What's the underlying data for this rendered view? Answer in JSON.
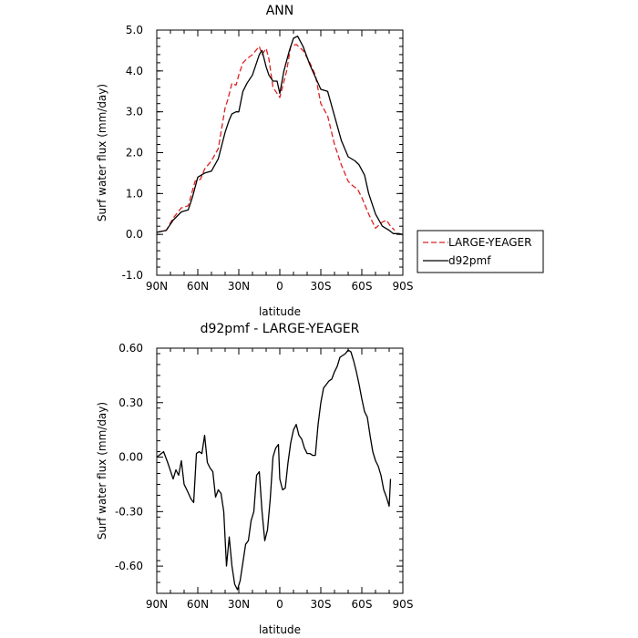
{
  "chart_data": [
    {
      "type": "line",
      "title": "ANN",
      "xlabel": "latitude",
      "ylabel": "Surf water flux (mm/day)",
      "xlim": [
        -90,
        90
      ],
      "ylim": [
        -1.0,
        5.0
      ],
      "xticks": [
        {
          "value": -90,
          "label": "90N"
        },
        {
          "value": -60,
          "label": "60N"
        },
        {
          "value": -30,
          "label": "30N"
        },
        {
          "value": 0,
          "label": "0"
        },
        {
          "value": 30,
          "label": "30S"
        },
        {
          "value": 60,
          "label": "60S"
        },
        {
          "value": 90,
          "label": "90S"
        }
      ],
      "yticks": [
        {
          "value": -1.0,
          "label": "-1.0"
        },
        {
          "value": 0.0,
          "label": "0.0"
        },
        {
          "value": 1.0,
          "label": "1.0"
        },
        {
          "value": 2.0,
          "label": "2.0"
        },
        {
          "value": 3.0,
          "label": "3.0"
        },
        {
          "value": 4.0,
          "label": "4.0"
        },
        {
          "value": 5.0,
          "label": "5.0"
        }
      ],
      "legend_position": "right",
      "series": [
        {
          "name": "LARGE-YEAGER",
          "color": "#dd2222",
          "dash": "dashed",
          "x": [
            -90,
            -83,
            -78,
            -72,
            -67,
            -62,
            -58,
            -55,
            -50,
            -45,
            -40,
            -38,
            -35,
            -32,
            -30,
            -27,
            -24,
            -20,
            -15,
            -13,
            -10,
            -8,
            -5,
            0,
            5,
            8,
            12,
            17,
            22,
            26,
            30,
            35,
            40,
            45,
            50,
            53,
            57,
            60,
            65,
            70,
            75,
            78,
            81,
            84
          ],
          "y": [
            0.05,
            0.1,
            0.4,
            0.65,
            0.7,
            1.3,
            1.35,
            1.6,
            1.8,
            2.1,
            3.1,
            3.3,
            3.7,
            3.65,
            3.9,
            4.2,
            4.3,
            4.4,
            4.6,
            4.4,
            4.55,
            4.3,
            3.6,
            3.35,
            4.0,
            4.6,
            4.65,
            4.5,
            4.2,
            3.9,
            3.2,
            2.9,
            2.2,
            1.7,
            1.3,
            1.2,
            1.1,
            0.9,
            0.5,
            0.15,
            0.3,
            0.35,
            0.2,
            0.1
          ]
        },
        {
          "name": "d92pmf",
          "color": "#000000",
          "dash": "solid",
          "x": [
            -90,
            -83,
            -78,
            -72,
            -67,
            -64,
            -60,
            -55,
            -50,
            -45,
            -40,
            -37,
            -35,
            -32,
            -30,
            -27,
            -24,
            -20,
            -15,
            -13,
            -10,
            -8,
            -5,
            -2,
            0,
            3,
            7,
            10,
            13,
            17,
            22,
            26,
            30,
            35,
            40,
            45,
            50,
            55,
            58,
            62,
            65,
            70,
            75,
            80,
            83,
            87,
            90
          ],
          "y": [
            0.05,
            0.1,
            0.35,
            0.55,
            0.6,
            0.9,
            1.4,
            1.5,
            1.55,
            1.85,
            2.5,
            2.8,
            2.95,
            3.0,
            3.0,
            3.5,
            3.7,
            3.9,
            4.4,
            4.5,
            4.1,
            3.9,
            3.75,
            3.75,
            3.45,
            4.0,
            4.5,
            4.8,
            4.85,
            4.6,
            4.15,
            3.85,
            3.55,
            3.5,
            2.9,
            2.3,
            1.9,
            1.8,
            1.7,
            1.45,
            1.0,
            0.5,
            0.2,
            0.1,
            0.02,
            0.02,
            0.0
          ]
        }
      ]
    },
    {
      "type": "line",
      "title": "d92pmf - LARGE-YEAGER",
      "xlabel": "latitude",
      "ylabel": "Surf water flux (mm/day)",
      "xlim": [
        -90,
        90
      ],
      "ylim": [
        -0.75,
        0.6
      ],
      "xticks": [
        {
          "value": -90,
          "label": "90N"
        },
        {
          "value": -60,
          "label": "60N"
        },
        {
          "value": -30,
          "label": "30N"
        },
        {
          "value": 0,
          "label": "0"
        },
        {
          "value": 30,
          "label": "30S"
        },
        {
          "value": 60,
          "label": "60S"
        },
        {
          "value": 90,
          "label": "90S"
        }
      ],
      "yticks": [
        {
          "value": -0.6,
          "label": "-0.60"
        },
        {
          "value": -0.3,
          "label": "-0.30"
        },
        {
          "value": 0.0,
          "label": "0.00"
        },
        {
          "value": 0.3,
          "label": "0.30"
        },
        {
          "value": 0.6,
          "label": "0.60"
        }
      ],
      "series": [
        {
          "color": "#000000",
          "dash": "solid",
          "x": [
            -90,
            -85,
            -82,
            -78,
            -76,
            -74,
            -72,
            -70,
            -68,
            -65,
            -63,
            -61,
            -59,
            -57,
            -55,
            -53,
            -51,
            -49,
            -47,
            -45,
            -43,
            -41,
            -39,
            -37,
            -35,
            -33,
            -31,
            -29,
            -27,
            -25,
            -23,
            -21,
            -19,
            -17,
            -15,
            -13,
            -11,
            -9,
            -7,
            -5,
            -3,
            -1,
            0,
            2,
            4,
            6,
            8,
            10,
            12,
            14,
            16,
            18,
            20,
            22,
            24,
            26,
            28,
            30,
            32,
            34,
            36,
            38,
            40,
            42,
            44,
            46,
            48,
            50,
            52,
            54,
            56,
            58,
            60,
            62,
            64,
            66,
            68,
            70,
            72,
            74,
            76,
            78,
            80,
            81
          ],
          "y": [
            0.0,
            0.03,
            -0.03,
            -0.12,
            -0.07,
            -0.1,
            -0.02,
            -0.15,
            -0.18,
            -0.23,
            -0.25,
            0.02,
            0.03,
            0.02,
            0.12,
            -0.03,
            -0.06,
            -0.08,
            -0.22,
            -0.18,
            -0.2,
            -0.3,
            -0.6,
            -0.44,
            -0.6,
            -0.7,
            -0.73,
            -0.68,
            -0.58,
            -0.48,
            -0.46,
            -0.35,
            -0.3,
            -0.1,
            -0.08,
            -0.3,
            -0.46,
            -0.4,
            -0.23,
            0.0,
            0.05,
            0.07,
            -0.12,
            -0.18,
            -0.17,
            -0.03,
            0.08,
            0.15,
            0.18,
            0.12,
            0.1,
            0.05,
            0.02,
            0.02,
            0.01,
            0.01,
            0.18,
            0.3,
            0.38,
            0.4,
            0.42,
            0.43,
            0.47,
            0.5,
            0.55,
            0.56,
            0.57,
            0.59,
            0.58,
            0.53,
            0.47,
            0.4,
            0.32,
            0.25,
            0.22,
            0.12,
            0.03,
            -0.02,
            -0.05,
            -0.1,
            -0.18,
            -0.22,
            -0.27,
            -0.12
          ]
        }
      ]
    }
  ]
}
